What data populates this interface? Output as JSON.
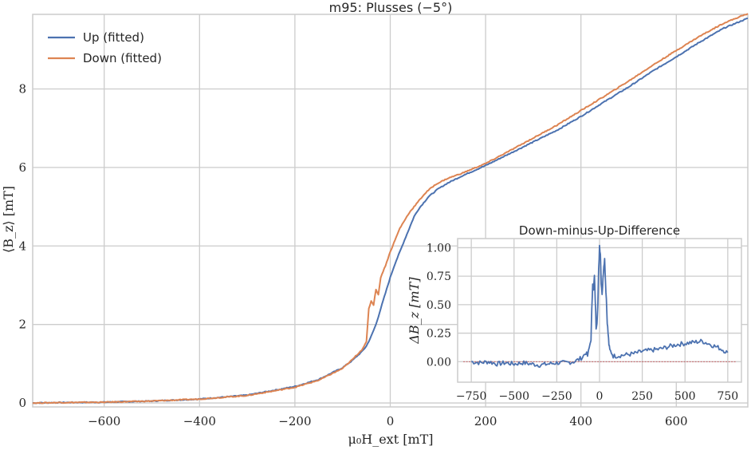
{
  "chart_data": [
    {
      "type": "line",
      "title": "m95: Plusses (−5°)",
      "xlabel": "μ₀H_ext [mT]",
      "ylabel": "⟨B_z⟩ [mT]",
      "xlim": [
        -750,
        750
      ],
      "ylim": [
        -0.1,
        9.9
      ],
      "xticks": [
        -600,
        -400,
        -200,
        0,
        200,
        400,
        600
      ],
      "yticks": [
        0,
        2,
        4,
        6,
        8
      ],
      "xtick_labels": [
        "−600",
        "−400",
        "−200",
        "0",
        "200",
        "400",
        "600"
      ],
      "ytick_labels": [
        "0",
        "2",
        "4",
        "6",
        "8"
      ],
      "grid": true,
      "legend_placement": "top-left",
      "series": [
        {
          "name": "Up (fitted)",
          "color": "#4c72b0",
          "x": [
            -750,
            -700,
            -600,
            -500,
            -400,
            -300,
            -200,
            -150,
            -100,
            -80,
            -60,
            -50,
            -40,
            -30,
            -20,
            -10,
            0,
            10,
            20,
            30,
            40,
            50,
            60,
            70,
            80,
            90,
            100,
            120,
            150,
            200,
            250,
            300,
            350,
            400,
            450,
            500,
            550,
            600,
            650,
            700,
            750
          ],
          "y": [
            0.0,
            0.01,
            0.02,
            0.05,
            0.1,
            0.2,
            0.42,
            0.6,
            0.9,
            1.08,
            1.3,
            1.45,
            1.7,
            2.0,
            2.4,
            2.8,
            3.2,
            3.55,
            3.85,
            4.15,
            4.45,
            4.75,
            4.95,
            5.1,
            5.25,
            5.35,
            5.45,
            5.6,
            5.78,
            6.05,
            6.35,
            6.65,
            6.95,
            7.3,
            7.68,
            8.05,
            8.45,
            8.82,
            9.2,
            9.55,
            9.8
          ]
        },
        {
          "name": "Down (fitted)",
          "color": "#dd8452",
          "x": [
            -750,
            -700,
            -600,
            -500,
            -400,
            -300,
            -200,
            -150,
            -100,
            -80,
            -60,
            -50,
            -45,
            -40,
            -35,
            -30,
            -25,
            -20,
            -10,
            0,
            10,
            20,
            30,
            40,
            50,
            60,
            70,
            80,
            90,
            100,
            120,
            150,
            200,
            250,
            300,
            350,
            400,
            450,
            500,
            550,
            600,
            650,
            700,
            750
          ],
          "y": [
            0.0,
            0.01,
            0.02,
            0.05,
            0.1,
            0.19,
            0.4,
            0.58,
            0.88,
            1.1,
            1.35,
            1.55,
            2.4,
            2.6,
            2.5,
            2.9,
            2.75,
            3.2,
            3.5,
            3.85,
            4.15,
            4.45,
            4.65,
            4.85,
            5.0,
            5.15,
            5.3,
            5.42,
            5.52,
            5.6,
            5.72,
            5.85,
            6.1,
            6.42,
            6.75,
            7.08,
            7.45,
            7.82,
            8.2,
            8.6,
            8.98,
            9.35,
            9.68,
            9.92
          ]
        }
      ]
    },
    {
      "type": "line",
      "title": "Down-minus-Up-Difference",
      "xlabel": "",
      "ylabel": "ΔB_z [mT]",
      "xlim": [
        -830,
        830
      ],
      "ylim": [
        -0.18,
        1.08
      ],
      "xticks": [
        -750,
        -500,
        -250,
        0,
        250,
        500,
        750
      ],
      "yticks": [
        0.0,
        0.25,
        0.5,
        0.75,
        1.0
      ],
      "xtick_labels": [
        "−750",
        "−500",
        "−250",
        "0",
        "250",
        "500",
        "750"
      ],
      "ytick_labels": [
        "0.00",
        "0.25",
        "0.50",
        "0.75",
        "1.00"
      ],
      "grid": true,
      "reference_line": {
        "y": 0,
        "color": "#c44e52",
        "style": "dashed"
      },
      "series": [
        {
          "color": "#4c72b0",
          "x": [
            -750,
            -700,
            -650,
            -600,
            -550,
            -500,
            -450,
            -400,
            -350,
            -300,
            -250,
            -200,
            -150,
            -120,
            -100,
            -80,
            -70,
            -60,
            -50,
            -45,
            -40,
            -35,
            -30,
            -25,
            -20,
            -15,
            -10,
            -5,
            0,
            5,
            10,
            15,
            20,
            25,
            30,
            35,
            40,
            45,
            50,
            55,
            60,
            70,
            80,
            100,
            150,
            200,
            250,
            300,
            350,
            400,
            450,
            500,
            550,
            600,
            650,
            700,
            750
          ],
          "y": [
            0.0,
            -0.01,
            0.0,
            -0.02,
            -0.01,
            -0.02,
            -0.01,
            -0.02,
            -0.03,
            -0.02,
            -0.01,
            -0.01,
            0.0,
            0.02,
            0.04,
            0.08,
            0.05,
            0.12,
            0.2,
            0.45,
            0.7,
            0.62,
            0.75,
            0.55,
            0.3,
            0.35,
            0.5,
            0.8,
            1.02,
            0.95,
            0.7,
            0.6,
            0.72,
            0.85,
            0.9,
            0.7,
            0.55,
            0.35,
            0.25,
            0.15,
            0.1,
            0.08,
            0.05,
            0.05,
            0.06,
            0.07,
            0.09,
            0.1,
            0.11,
            0.13,
            0.15,
            0.16,
            0.17,
            0.18,
            0.15,
            0.12,
            0.08
          ]
        }
      ]
    }
  ]
}
